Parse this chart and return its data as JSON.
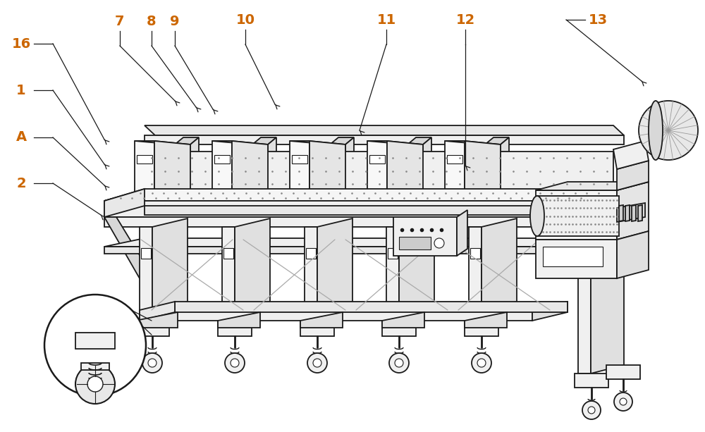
{
  "bg_color": "#ffffff",
  "line_color": "#1a1a1a",
  "label_color": "#cc6600",
  "fig_width": 10.0,
  "fig_height": 6.13,
  "lw": 1.3,
  "annotations": [
    [
      "7",
      170,
      30,
      248,
      143
    ],
    [
      "8",
      215,
      30,
      278,
      152
    ],
    [
      "9",
      248,
      30,
      302,
      155
    ],
    [
      "10",
      348,
      28,
      390,
      148
    ],
    [
      "11",
      548,
      28,
      510,
      185
    ],
    [
      "12",
      660,
      28,
      660,
      235
    ],
    [
      "13",
      848,
      28,
      910,
      115
    ],
    [
      "16",
      30,
      62,
      148,
      198
    ],
    [
      "1",
      30,
      128,
      148,
      233
    ],
    [
      "A",
      30,
      195,
      148,
      263
    ],
    [
      "2",
      30,
      260,
      143,
      305
    ]
  ]
}
